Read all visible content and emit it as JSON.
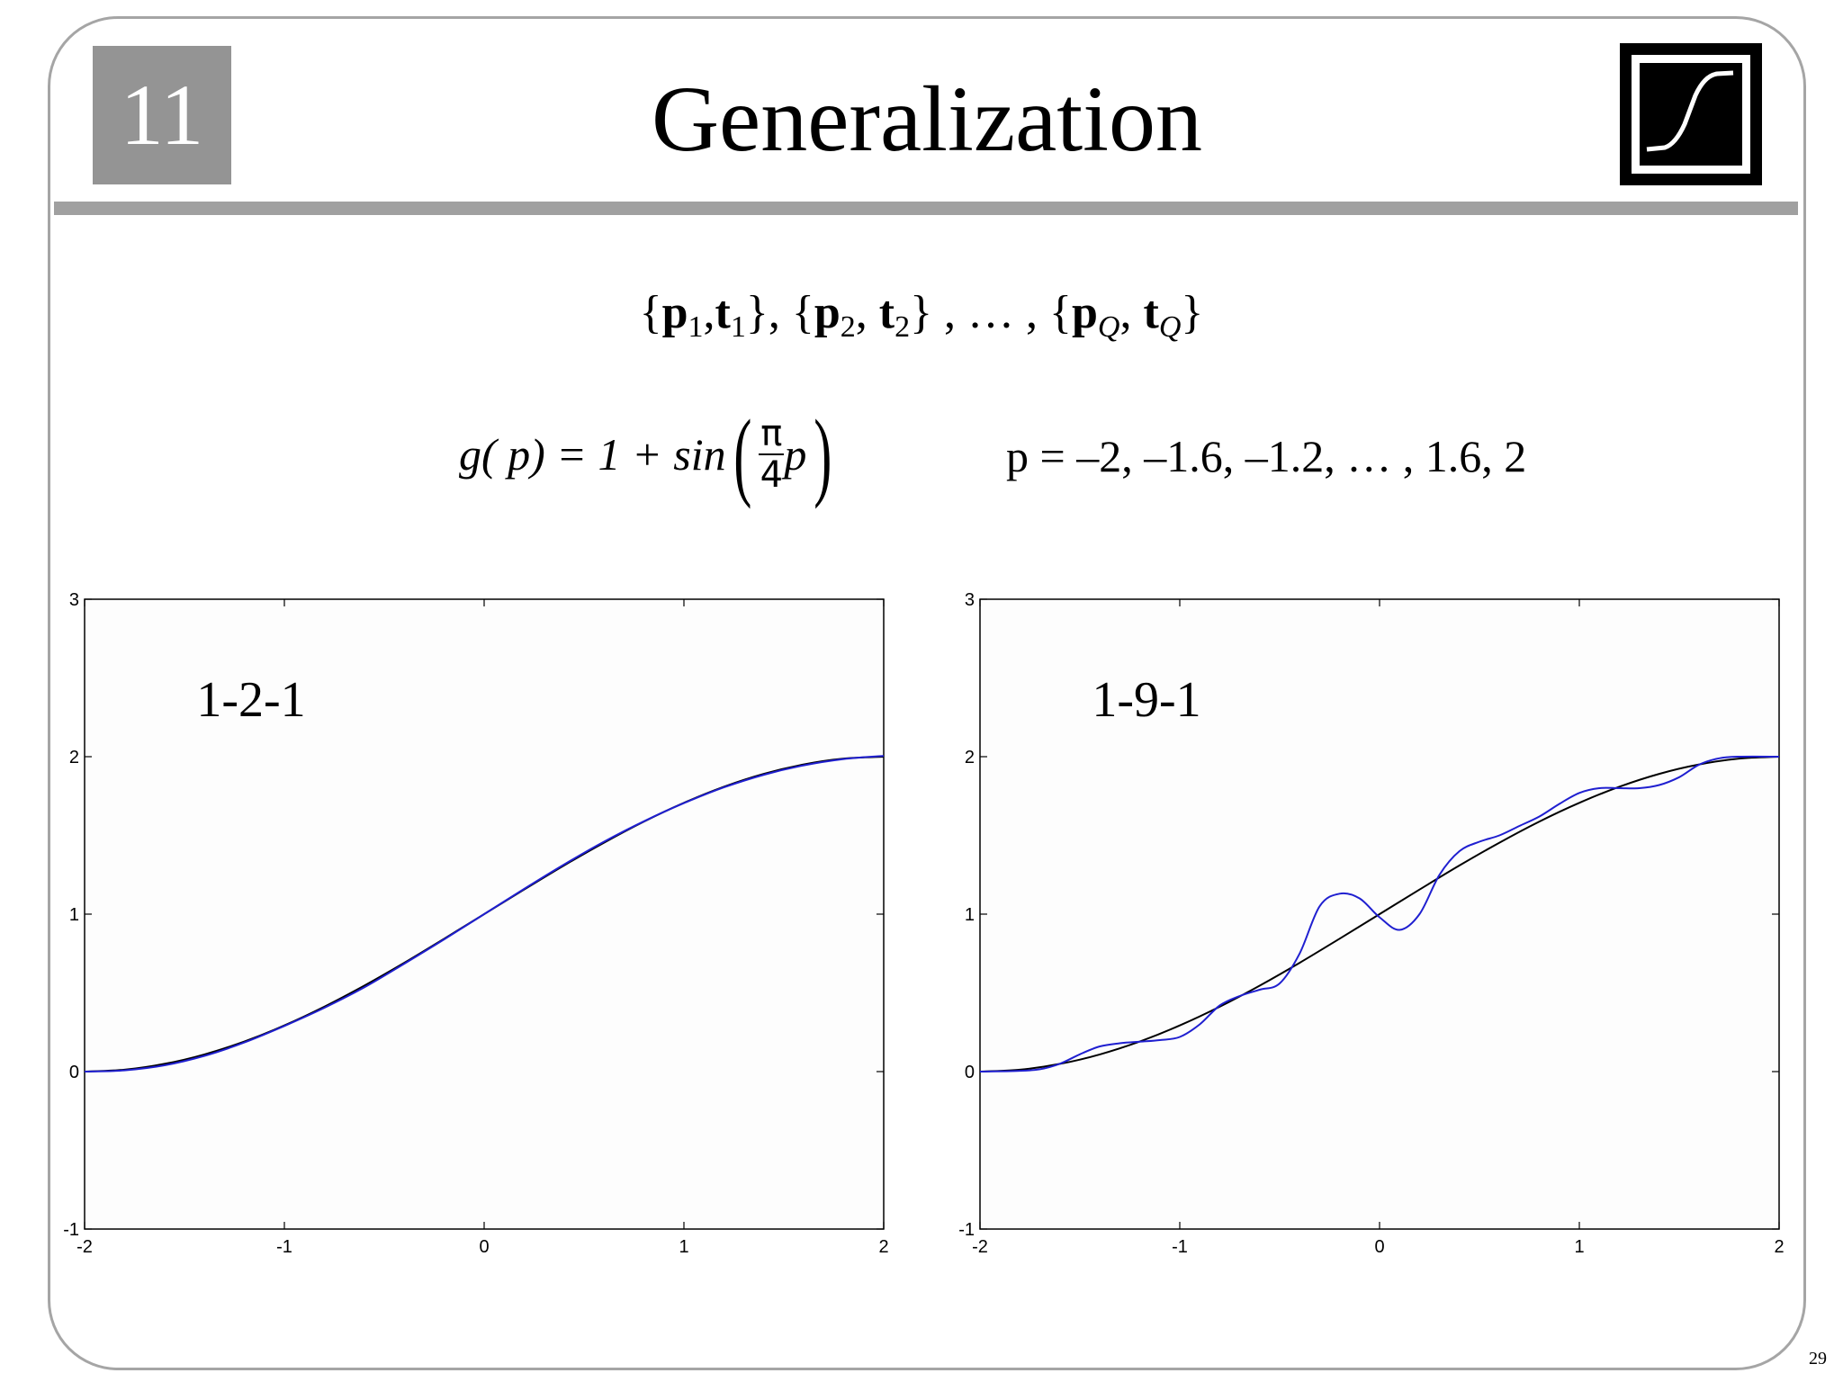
{
  "slide": {
    "chapter_number": "11",
    "title": "Generalization",
    "page_number": "29"
  },
  "equations": {
    "training_set": {
      "open1": "{",
      "p": "p",
      "s1": "1",
      "comma1": ",",
      "t": "t",
      "close1": "}",
      "sep1": ", {",
      "s2": "2",
      "close2": "}",
      "ellipsis": " , … , {",
      "sQ": "Q",
      "close3": "}"
    },
    "function": {
      "lhs": "g( p)  =  1 + sin",
      "num": "π",
      "den": "4",
      "arg": "p"
    },
    "sample_points": "p  =  –2, –1.6, –1.2, … , 1.6, 2"
  },
  "colors": {
    "target_curve": "#000000",
    "network_response": "#1f1fd0",
    "chapter_box": "#949494",
    "title_rule": "#a0a0a0"
  },
  "chart_data": [
    {
      "type": "line",
      "panel_label": "1-2-1",
      "xlim": [
        -2,
        2
      ],
      "ylim": [
        -1,
        3
      ],
      "xticks": [
        -2,
        -1,
        0,
        1,
        2
      ],
      "yticks": [
        -1,
        0,
        1,
        2,
        3
      ],
      "grid": false,
      "series": [
        {
          "role": "target g(p)",
          "x": [
            -2,
            -1.8,
            -1.6,
            -1.4,
            -1.2,
            -1,
            -0.8,
            -0.6,
            -0.4,
            -0.2,
            0,
            0.2,
            0.4,
            0.6,
            0.8,
            1,
            1.2,
            1.4,
            1.6,
            1.8,
            2
          ],
          "y": [
            0,
            0.012,
            0.049,
            0.109,
            0.191,
            0.293,
            0.412,
            0.546,
            0.691,
            0.844,
            1,
            1.156,
            1.309,
            1.454,
            1.588,
            1.707,
            1.809,
            1.891,
            1.951,
            1.988,
            2
          ]
        },
        {
          "role": "network response",
          "x": [
            -2,
            -1.8,
            -1.6,
            -1.4,
            -1.2,
            -1,
            -0.8,
            -0.6,
            -0.4,
            -0.2,
            0,
            0.2,
            0.4,
            0.6,
            0.8,
            1,
            1.2,
            1.4,
            1.6,
            1.8,
            2
          ],
          "y": [
            0,
            0.008,
            0.04,
            0.1,
            0.185,
            0.29,
            0.405,
            0.535,
            0.685,
            0.84,
            1,
            1.16,
            1.315,
            1.46,
            1.59,
            1.705,
            1.805,
            1.885,
            1.945,
            1.985,
            2.005
          ]
        }
      ]
    },
    {
      "type": "line",
      "panel_label": "1-9-1",
      "xlim": [
        -2,
        2
      ],
      "ylim": [
        -1,
        3
      ],
      "xticks": [
        -2,
        -1,
        0,
        1,
        2
      ],
      "yticks": [
        -1,
        0,
        1,
        2,
        3
      ],
      "grid": false,
      "series": [
        {
          "role": "target g(p)",
          "x": [
            -2,
            -1.8,
            -1.6,
            -1.4,
            -1.2,
            -1,
            -0.8,
            -0.6,
            -0.4,
            -0.2,
            0,
            0.2,
            0.4,
            0.6,
            0.8,
            1,
            1.2,
            1.4,
            1.6,
            1.8,
            2
          ],
          "y": [
            0,
            0.012,
            0.049,
            0.109,
            0.191,
            0.293,
            0.412,
            0.546,
            0.691,
            0.844,
            1,
            1.156,
            1.309,
            1.454,
            1.588,
            1.707,
            1.809,
            1.891,
            1.951,
            1.988,
            2
          ]
        },
        {
          "role": "network response",
          "x": [
            -2,
            -1.8,
            -1.7,
            -1.6,
            -1.5,
            -1.4,
            -1.3,
            -1.2,
            -1.1,
            -1.0,
            -0.9,
            -0.8,
            -0.7,
            -0.6,
            -0.5,
            -0.4,
            -0.3,
            -0.2,
            -0.1,
            0,
            0.1,
            0.2,
            0.3,
            0.4,
            0.5,
            0.6,
            0.7,
            0.8,
            0.9,
            1.0,
            1.1,
            1.2,
            1.3,
            1.4,
            1.5,
            1.6,
            1.7,
            1.8,
            2
          ],
          "y": [
            0,
            0.005,
            0.015,
            0.05,
            0.11,
            0.16,
            0.18,
            0.19,
            0.2,
            0.22,
            0.3,
            0.42,
            0.48,
            0.52,
            0.56,
            0.75,
            1.05,
            1.13,
            1.1,
            0.98,
            0.9,
            1.0,
            1.25,
            1.4,
            1.46,
            1.5,
            1.56,
            1.62,
            1.7,
            1.77,
            1.8,
            1.8,
            1.8,
            1.82,
            1.87,
            1.95,
            1.99,
            2.0,
            2.0
          ]
        }
      ]
    }
  ]
}
